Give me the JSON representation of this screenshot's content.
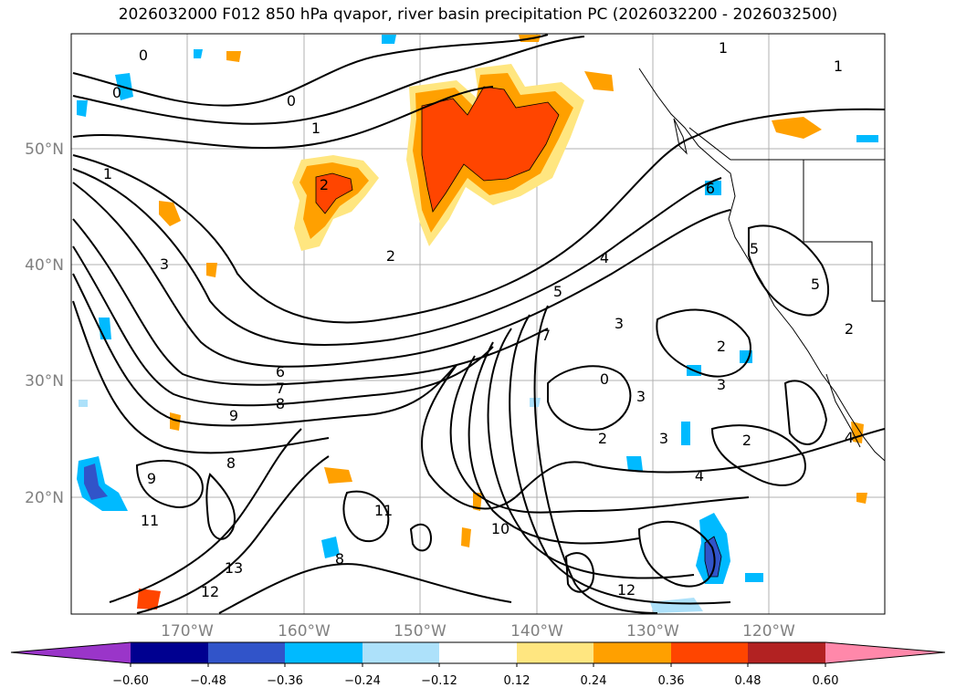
{
  "title": "2026032000 F012 850 hPa qvapor, river basin precipitation PC (2026032200 - 2026032500)",
  "map": {
    "lat_labels": [
      "50°N",
      "40°N",
      "30°N",
      "20°N"
    ],
    "lon_labels": [
      "170°W",
      "160°W",
      "150°W",
      "140°W",
      "130°W",
      "120°W"
    ],
    "contour_labels": [
      "0",
      "0",
      "0",
      "0",
      "1",
      "1",
      "1",
      "1",
      "2",
      "2",
      "2",
      "2",
      "2",
      "2",
      "3",
      "3",
      "3",
      "3",
      "3",
      "4",
      "4",
      "4",
      "5",
      "5",
      "5",
      "6",
      "6",
      "7",
      "7",
      "8",
      "8",
      "8",
      "9",
      "9",
      "10",
      "11",
      "11",
      "12",
      "12",
      "13"
    ]
  },
  "colorbar": {
    "colors": [
      "#9a35c9",
      "#000090",
      "#3154c9",
      "#00baff",
      "#ade1fa",
      "#ffffff",
      "#ffe680",
      "#ffa000",
      "#ff4500",
      "#b22222",
      "#ff88aa"
    ],
    "ticks": [
      "−0.60",
      "−0.48",
      "−0.36",
      "−0.24",
      "−0.12",
      "0.12",
      "0.24",
      "0.36",
      "0.48",
      "0.60"
    ]
  }
}
